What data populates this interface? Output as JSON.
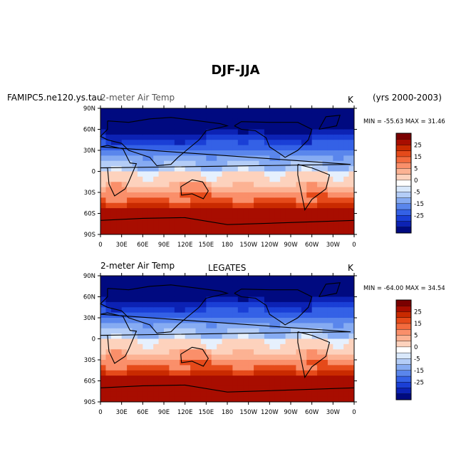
{
  "figure": {
    "title": "DJF-JJA"
  },
  "chart_data": [
    {
      "type": "heatmap",
      "left_title": "FAMIPC5.ne120.ys.tau",
      "overlap_title": "2-meter Air Temp",
      "center_title": "",
      "units": "K",
      "right_note": "(yrs 2000-2003)",
      "min_max": "MIN = -55.63 MAX =  31.46",
      "min": -55.63,
      "max": 31.46,
      "x_ticks": [
        "0",
        "30E",
        "60E",
        "90E",
        "120E",
        "150E",
        "180",
        "150W",
        "120W",
        "90W",
        "60W",
        "30W",
        "0"
      ],
      "y_ticks": [
        "90N",
        "60N",
        "30N",
        "0",
        "30S",
        "60S",
        "90S"
      ]
    },
    {
      "type": "heatmap",
      "left_title": "2-meter Air Temp",
      "center_title": "LEGATES",
      "units": "K",
      "right_note": "",
      "min_max": "MIN = -64.00 MAX =  34.54",
      "min": -64.0,
      "max": 34.54,
      "x_ticks": [
        "0",
        "30E",
        "60E",
        "90E",
        "120E",
        "150E",
        "180",
        "150W",
        "120W",
        "90W",
        "60W",
        "30W",
        "0"
      ],
      "y_ticks": [
        "90N",
        "60N",
        "30N",
        "0",
        "30S",
        "60S",
        "90S"
      ]
    }
  ],
  "colorbar": {
    "labels": [
      "25",
      "15",
      "5",
      "0",
      "-5",
      "-15",
      "-25"
    ],
    "colors": [
      "#7a0000",
      "#a80d00",
      "#c92a00",
      "#e54a1a",
      "#f36b3e",
      "#fa8f6a",
      "#fcb293",
      "#fdd2bd",
      "#ffffff",
      "#d9e8fb",
      "#b4cdf7",
      "#86abf2",
      "#5a86ec",
      "#3461e6",
      "#1a3fd6",
      "#0c22b4",
      "#000a80"
    ]
  }
}
